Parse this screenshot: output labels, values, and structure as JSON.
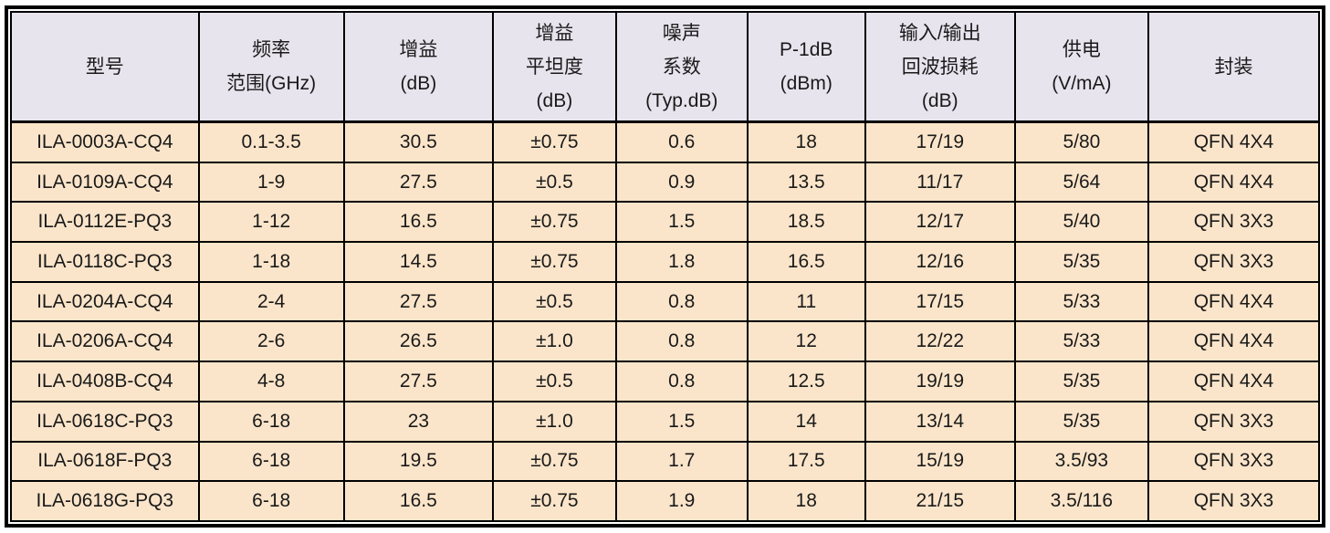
{
  "chart_data": {
    "type": "table",
    "title": "",
    "columns": [
      {
        "label": "型号",
        "label_lines": [
          "型号"
        ]
      },
      {
        "label": "频率 范围(GHz)",
        "label_lines": [
          "频率",
          "范围(GHz)"
        ]
      },
      {
        "label": "增益 (dB)",
        "label_lines": [
          "增益",
          "(dB)"
        ]
      },
      {
        "label": "增益 平坦度 (dB)",
        "label_lines": [
          "增益",
          "平坦度",
          "(dB)"
        ]
      },
      {
        "label": "噪声 系数 (Typ.dB)",
        "label_lines": [
          "噪声",
          "系数",
          "(Typ.dB)"
        ]
      },
      {
        "label": "P-1dB (dBm)",
        "label_lines": [
          "P-1dB",
          "(dBm)"
        ]
      },
      {
        "label": "输入/输出 回波损耗 (dB)",
        "label_lines": [
          "输入/输出",
          "回波损耗",
          "(dB)"
        ]
      },
      {
        "label": "供电 (V/mA)",
        "label_lines": [
          "供电",
          "(V/mA)"
        ]
      },
      {
        "label": "封装",
        "label_lines": [
          "封装"
        ]
      }
    ],
    "rows": [
      [
        "ILA-0003A-CQ4",
        "0.1-3.5",
        "30.5",
        "±0.75",
        "0.6",
        "18",
        "17/19",
        "5/80",
        "QFN 4X4"
      ],
      [
        "ILA-0109A-CQ4",
        "1-9",
        "27.5",
        "±0.5",
        "0.9",
        "13.5",
        "11/17",
        "5/64",
        "QFN 4X4"
      ],
      [
        "ILA-0112E-PQ3",
        "1-12",
        "16.5",
        "±0.75",
        "1.5",
        "18.5",
        "12/17",
        "5/40",
        "QFN 3X3"
      ],
      [
        "ILA-0118C-PQ3",
        "1-18",
        "14.5",
        "±0.75",
        "1.8",
        "16.5",
        "12/16",
        "5/35",
        "QFN 3X3"
      ],
      [
        "ILA-0204A-CQ4",
        "2-4",
        "27.5",
        "±0.5",
        "0.8",
        "11",
        "17/15",
        "5/33",
        "QFN 4X4"
      ],
      [
        "ILA-0206A-CQ4",
        "2-6",
        "26.5",
        "±1.0",
        "0.8",
        "12",
        "12/22",
        "5/33",
        "QFN 4X4"
      ],
      [
        "ILA-0408B-CQ4",
        "4-8",
        "27.5",
        "±0.5",
        "0.8",
        "12.5",
        "19/19",
        "5/35",
        "QFN 4X4"
      ],
      [
        "ILA-0618C-PQ3",
        "6-18",
        "23",
        "±1.0",
        "1.5",
        "14",
        "13/14",
        "5/35",
        "QFN 3X3"
      ],
      [
        "ILA-0618F-PQ3",
        "6-18",
        "19.5",
        "±0.75",
        "1.7",
        "17.5",
        "15/19",
        "3.5/93",
        "QFN 3X3"
      ],
      [
        "ILA-0618G-PQ3",
        "6-18",
        "16.5",
        "±0.75",
        "1.9",
        "18",
        "21/15",
        "3.5/116",
        "QFN 3X3"
      ]
    ]
  },
  "colors": {
    "header_bg": "#e8e4ee",
    "row_bg": "#fbe5ca",
    "border": "#000000",
    "text": "#1a1a1a"
  }
}
